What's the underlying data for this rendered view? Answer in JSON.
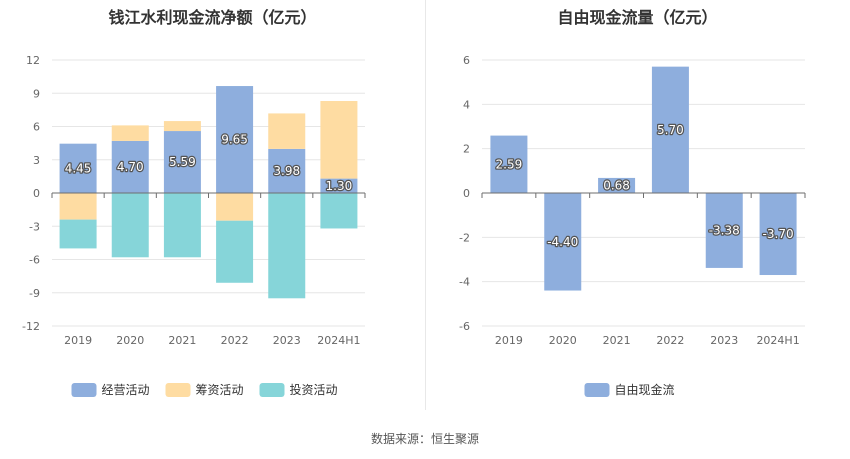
{
  "source_text": "数据来源：恒生聚源",
  "chart_data": [
    {
      "type": "bar",
      "stacked": true,
      "title": "钱江水利现金流净额（亿元）",
      "categories": [
        "2019",
        "2020",
        "2021",
        "2022",
        "2023",
        "2024H1"
      ],
      "ylim": [
        -12,
        12
      ],
      "yticks": [
        12,
        9,
        6,
        3,
        0,
        -3,
        -6,
        -9,
        -12
      ],
      "grid": true,
      "legend_position": "bottom",
      "series": [
        {
          "name": "经营活动",
          "color": "#8eaedd",
          "values": [
            4.45,
            4.7,
            5.59,
            9.65,
            3.98,
            1.3
          ],
          "labels": [
            "4.45",
            "4.70",
            "5.59",
            "9.65",
            "3.98",
            "1.30"
          ]
        },
        {
          "name": "筹资活动",
          "color": "#fedca2",
          "values": [
            -2.4,
            1.4,
            0.9,
            -2.5,
            3.2,
            7.0
          ]
        },
        {
          "name": "投资活动",
          "color": "#86d5d9",
          "values": [
            -2.6,
            -5.8,
            -5.8,
            -5.6,
            -9.5,
            -3.2
          ]
        }
      ]
    },
    {
      "type": "bar",
      "title": "自由现金流量（亿元）",
      "categories": [
        "2019",
        "2020",
        "2021",
        "2022",
        "2023",
        "2024H1"
      ],
      "ylim": [
        -6,
        6
      ],
      "yticks": [
        6,
        4,
        2,
        0,
        -2,
        -4,
        -6
      ],
      "grid": true,
      "legend_position": "bottom",
      "series": [
        {
          "name": "自由现金流",
          "color": "#8eaedd",
          "values": [
            2.59,
            -4.4,
            0.68,
            5.7,
            -3.38,
            -3.7
          ],
          "labels": [
            "2.59",
            "-4.40",
            "0.68",
            "5.70",
            "-3.38",
            "-3.70"
          ]
        }
      ]
    }
  ]
}
